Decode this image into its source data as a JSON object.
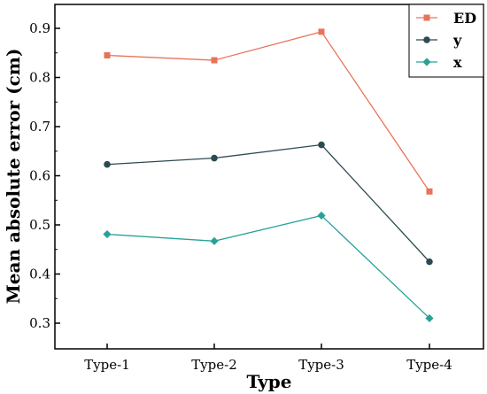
{
  "chart_data": {
    "type": "line",
    "categories": [
      "Type-1",
      "Type-2",
      "Type-3",
      "Type-4"
    ],
    "series": [
      {
        "name": "ED",
        "color": "#e8735a",
        "marker": "square",
        "values": [
          0.845,
          0.835,
          0.893,
          0.568
        ]
      },
      {
        "name": "y",
        "color": "#2c4a52",
        "marker": "circle",
        "values": [
          0.623,
          0.636,
          0.663,
          0.425
        ]
      },
      {
        "name": "x",
        "color": "#2aa198",
        "marker": "diamond",
        "values": [
          0.481,
          0.467,
          0.519,
          0.31
        ]
      }
    ],
    "title": "",
    "xlabel": "Type",
    "ylabel": "Mean absolute error (cm)",
    "ylim": [
      0.25,
      0.95
    ],
    "yticks": [
      0.3,
      0.4,
      0.5,
      0.6,
      0.7,
      0.8,
      0.9
    ],
    "ytick_labels": [
      "0.3",
      "0.4",
      "0.5",
      "0.6",
      "0.7",
      "0.8",
      "0.9"
    ],
    "grid": false,
    "legend_position": "top-right"
  }
}
